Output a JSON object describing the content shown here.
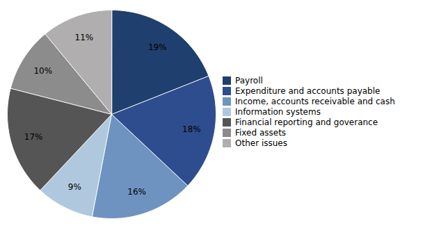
{
  "chart_data": {
    "type": "pie",
    "categories": [
      "Payroll",
      "Expenditure and accounts payable",
      "Income, accounts receivable and cash",
      "Information systems",
      "Financial reporting and goverance",
      "Fixed assets",
      "Other issues"
    ],
    "values": [
      19,
      18,
      16,
      9,
      17,
      10,
      11
    ],
    "value_labels": [
      "19%",
      "18%",
      "16%",
      "9%",
      "17%",
      "10%",
      "11%"
    ],
    "colors": [
      "#1f3f6e",
      "#2e4d8e",
      "#6e93c1",
      "#b0c8de",
      "#555555",
      "#8c8c8c",
      "#b0aeae"
    ],
    "data_labels": true,
    "legend": "right"
  }
}
